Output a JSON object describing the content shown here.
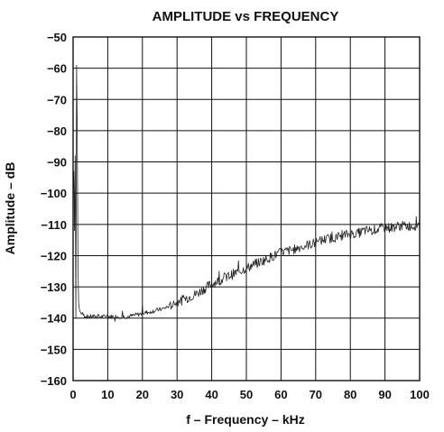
{
  "chart_data": {
    "type": "line",
    "title": "AMPLITUDE vs FREQUENCY",
    "xlabel": "f – Frequency – kHz",
    "ylabel": "Amplitude – dB",
    "xlim": [
      0,
      100
    ],
    "ylim": [
      -160,
      -50
    ],
    "xticks": [
      0,
      10,
      20,
      30,
      40,
      50,
      60,
      70,
      80,
      90,
      100
    ],
    "yticks": [
      -50,
      -60,
      -70,
      -80,
      -90,
      -100,
      -110,
      -120,
      -130,
      -140,
      -150,
      -160
    ],
    "xtick_labels": [
      "0",
      "10",
      "20",
      "30",
      "40",
      "50",
      "60",
      "70",
      "80",
      "90",
      "100"
    ],
    "ytick_labels": [
      "−50",
      "−60",
      "−70",
      "−80",
      "−90",
      "−100",
      "−110",
      "−120",
      "−130",
      "−140",
      "−150",
      "−160"
    ],
    "grid": true,
    "series": [
      {
        "x": [
          0,
          0.2,
          0.4,
          0.6,
          0.8,
          1.0,
          1.2,
          1.4,
          1.6,
          1.8,
          2,
          3,
          4,
          5,
          6,
          7,
          8,
          9,
          10,
          12,
          14,
          16,
          18,
          20,
          22,
          24,
          26,
          28,
          30,
          32,
          34,
          36,
          38,
          40,
          42,
          44,
          46,
          48,
          50,
          52,
          54,
          56,
          58,
          60,
          62,
          64,
          66,
          68,
          70,
          72,
          74,
          76,
          78,
          80,
          82,
          84,
          86,
          88,
          90,
          92,
          94,
          96,
          98,
          100
        ],
        "y": [
          -100,
          -93,
          -112,
          -88,
          -140,
          -59,
          -80,
          -122,
          -135,
          -137,
          -138,
          -139,
          -139.5,
          -139.5,
          -139.5,
          -139.5,
          -139.5,
          -139.5,
          -139.5,
          -139.5,
          -139.5,
          -139.5,
          -139,
          -138.5,
          -138,
          -137.5,
          -137,
          -136,
          -135,
          -134,
          -133,
          -132,
          -130.5,
          -129,
          -128,
          -127,
          -126,
          -125,
          -124,
          -123,
          -122,
          -121,
          -120,
          -119,
          -118.5,
          -118,
          -117,
          -116.5,
          -116,
          -115,
          -114.5,
          -114,
          -113.5,
          -113,
          -113,
          -112,
          -112,
          -111.5,
          -111,
          -111,
          -110.5,
          -110.5,
          -110.5,
          -110
        ]
      }
    ]
  }
}
